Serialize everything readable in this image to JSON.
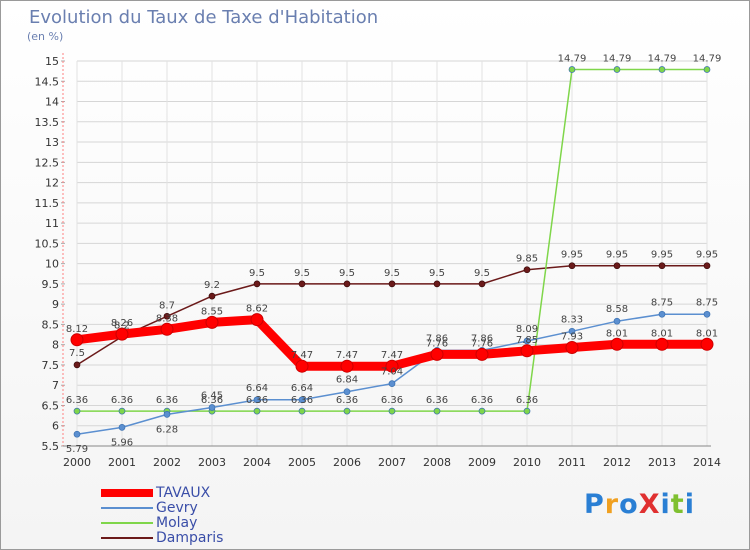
{
  "chart_data": {
    "type": "line",
    "title": "Evolution du Taux de Taxe d'Habitation",
    "subtitle": "(en %)",
    "x": [
      "2000",
      "2001",
      "2002",
      "2003",
      "2004",
      "2005",
      "2006",
      "2007",
      "2008",
      "2009",
      "2010",
      "2011",
      "2012",
      "2013",
      "2014"
    ],
    "y_ticks": [
      "5.5",
      "6",
      "6.5",
      "7",
      "7.5",
      "8",
      "8.5",
      "9",
      "9.5",
      "10",
      "10.5",
      "11",
      "11.5",
      "12",
      "12.5",
      "13",
      "13.5",
      "14",
      "14.5",
      "15"
    ],
    "ylim": [
      5.5,
      15
    ],
    "grid": true,
    "legend_position": "bottom-left",
    "series": [
      {
        "name": "TAVAUX",
        "color": "#ff0000",
        "width": 9,
        "values": [
          8.12,
          8.26,
          8.38,
          8.55,
          8.62,
          7.47,
          7.47,
          7.47,
          7.76,
          7.76,
          7.85,
          7.93,
          8.01,
          8.01,
          8.01
        ],
        "labels": [
          "8.12",
          "8.26",
          "8.38",
          "8.55",
          "8.62",
          "7.47",
          "7.47",
          "7.47",
          "7.76",
          "7.76",
          "7.85",
          "7.93",
          "8.01",
          "8.01",
          "8.01"
        ]
      },
      {
        "name": "Gevry",
        "color": "#5b8fd0",
        "width": 1.5,
        "values": [
          5.79,
          5.96,
          6.28,
          6.45,
          6.64,
          6.64,
          6.84,
          7.04,
          7.86,
          7.86,
          8.09,
          8.33,
          8.58,
          8.75,
          8.75
        ],
        "labels": [
          "5.79",
          "5.96",
          "6.28",
          "6.45",
          "6.64",
          "6.64",
          "6.84",
          "7.04",
          "7.86",
          "7.86",
          "8.09",
          "8.33",
          "8.58",
          "8.75",
          "8.75"
        ]
      },
      {
        "name": "Molay",
        "color": "#7fd64a",
        "width": 1.5,
        "values": [
          6.36,
          6.36,
          6.36,
          6.36,
          6.36,
          6.36,
          6.36,
          6.36,
          6.36,
          6.36,
          6.36,
          14.79,
          14.79,
          14.79,
          14.79
        ],
        "labels": [
          "6.36",
          "6.36",
          "6.36",
          "6.36",
          "6.36",
          "6.36",
          "6.36",
          "6.36",
          "6.36",
          "6.36",
          "6.36",
          "14.79",
          "14.79",
          "14.79",
          "14.79"
        ]
      },
      {
        "name": "Damparis",
        "color": "#6b1a1a",
        "width": 1.5,
        "values": [
          7.5,
          8.2,
          8.7,
          9.2,
          9.5,
          9.5,
          9.5,
          9.5,
          9.5,
          9.5,
          9.85,
          9.95,
          9.95,
          9.95,
          9.95
        ],
        "labels": [
          "7.5",
          "8.2",
          "8.7",
          "9.2",
          "9.5",
          "9.5",
          "9.5",
          "9.5",
          "9.5",
          "9.5",
          "9.85",
          "9.95",
          "9.95",
          "9.95",
          "9.95"
        ]
      }
    ]
  },
  "brand": {
    "text": "ProXiti",
    "letters": [
      "P",
      "r",
      "o",
      "X",
      "i",
      "t",
      "i"
    ],
    "colors": [
      "#2a7fd4",
      "#f0a020",
      "#2a7fd4",
      "#e03030",
      "#2a7fd4",
      "#7fc030",
      "#2a7fd4"
    ]
  }
}
